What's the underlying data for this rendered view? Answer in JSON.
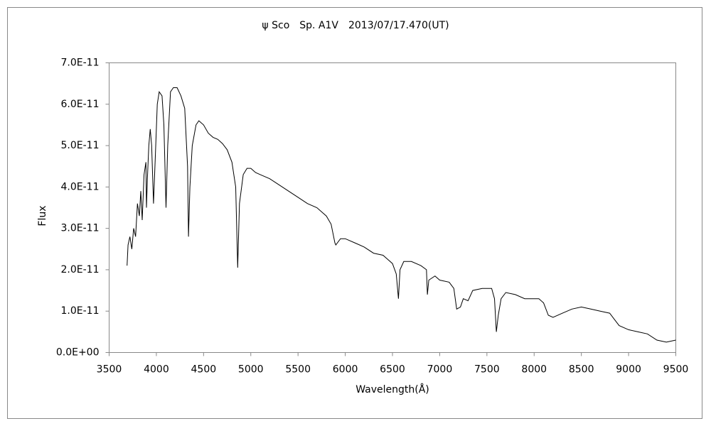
{
  "chart_data": {
    "type": "line",
    "title": "ψ Sco　Sp. A1V　2013/07/17.470(UT)",
    "x_label": "Wavelength(Å)",
    "y_label": "Flux",
    "xlim": [
      3500,
      9500
    ],
    "xticks": [
      3500,
      4000,
      4500,
      5000,
      5500,
      6000,
      6500,
      7000,
      7500,
      8000,
      8500,
      9000,
      9500
    ],
    "ylim": [
      0,
      7e-11
    ],
    "yticks": [
      {
        "value": 0,
        "label": "0.0E+00"
      },
      {
        "value": 1e-11,
        "label": "1.0E-11"
      },
      {
        "value": 2e-11,
        "label": "2.0E-11"
      },
      {
        "value": 3e-11,
        "label": "3.0E-11"
      },
      {
        "value": 4e-11,
        "label": "4.0E-11"
      },
      {
        "value": 5e-11,
        "label": "5.0E-11"
      },
      {
        "value": 6e-11,
        "label": "6.0E-11"
      },
      {
        "value": 7e-11,
        "label": "7.0E-11"
      }
    ],
    "grid": false,
    "series": [
      {
        "name": "Flux",
        "color": "#000000",
        "x": [
          3690,
          3700,
          3720,
          3740,
          3760,
          3780,
          3800,
          3820,
          3835,
          3850,
          3870,
          3889,
          3895,
          3905,
          3920,
          3935,
          3950,
          3970,
          3990,
          4010,
          4030,
          4060,
          4080,
          4102,
          4120,
          4150,
          4180,
          4220,
          4260,
          4300,
          4330,
          4340,
          4355,
          4380,
          4420,
          4450,
          4500,
          4550,
          4600,
          4650,
          4700,
          4750,
          4800,
          4840,
          4861,
          4880,
          4920,
          4960,
          5000,
          5050,
          5100,
          5200,
          5300,
          5400,
          5500,
          5600,
          5700,
          5800,
          5850,
          5890,
          5900,
          5950,
          6000,
          6100,
          6200,
          6300,
          6400,
          6450,
          6500,
          6540,
          6563,
          6580,
          6620,
          6700,
          6800,
          6860,
          6870,
          6885,
          6950,
          7000,
          7100,
          7150,
          7180,
          7220,
          7250,
          7300,
          7350,
          7450,
          7550,
          7580,
          7600,
          7620,
          7650,
          7700,
          7800,
          7900,
          8050,
          8100,
          8150,
          8200,
          8300,
          8400,
          8500,
          8600,
          8700,
          8800,
          8850,
          8900,
          9000,
          9100,
          9200,
          9300,
          9400,
          9500
        ],
        "values": [
          2.1e-11,
          2.6e-11,
          2.8e-11,
          2.5e-11,
          3e-11,
          2.8e-11,
          3.6e-11,
          3.3e-11,
          3.9e-11,
          3.2e-11,
          4.3e-11,
          4.6e-11,
          3.5e-11,
          4.2e-11,
          5e-11,
          5.4e-11,
          5e-11,
          3.6e-11,
          4.8e-11,
          6e-11,
          6.3e-11,
          6.2e-11,
          5.5e-11,
          3.5e-11,
          5e-11,
          6.3e-11,
          6.4e-11,
          6.4e-11,
          6.2e-11,
          5.9e-11,
          4.5e-11,
          2.8e-11,
          4e-11,
          5e-11,
          5.5e-11,
          5.6e-11,
          5.5e-11,
          5.3e-11,
          5.2e-11,
          5.15e-11,
          5.05e-11,
          4.9e-11,
          4.6e-11,
          4e-11,
          2.05e-11,
          3.6e-11,
          4.3e-11,
          4.45e-11,
          4.45e-11,
          4.35e-11,
          4.3e-11,
          4.2e-11,
          4.05e-11,
          3.9e-11,
          3.75e-11,
          3.6e-11,
          3.5e-11,
          3.3e-11,
          3.1e-11,
          2.65e-11,
          2.6e-11,
          2.75e-11,
          2.75e-11,
          2.65e-11,
          2.55e-11,
          2.4e-11,
          2.35e-11,
          2.25e-11,
          2.15e-11,
          1.9e-11,
          1.3e-11,
          2e-11,
          2.2e-11,
          2.2e-11,
          2.1e-11,
          2e-11,
          1.4e-11,
          1.75e-11,
          1.85e-11,
          1.75e-11,
          1.7e-11,
          1.55e-11,
          1.05e-11,
          1.1e-11,
          1.3e-11,
          1.25e-11,
          1.5e-11,
          1.55e-11,
          1.55e-11,
          1.3e-11,
          5e-12,
          9e-12,
          1.3e-11,
          1.45e-11,
          1.4e-11,
          1.3e-11,
          1.3e-11,
          1.2e-11,
          9e-12,
          8.5e-12,
          9.5e-12,
          1.05e-11,
          1.1e-11,
          1.05e-11,
          1e-11,
          9.5e-12,
          8e-12,
          6.5e-12,
          5.5e-12,
          5e-12,
          4.5e-12,
          3e-12,
          2.5e-12,
          3e-12
        ]
      }
    ]
  }
}
